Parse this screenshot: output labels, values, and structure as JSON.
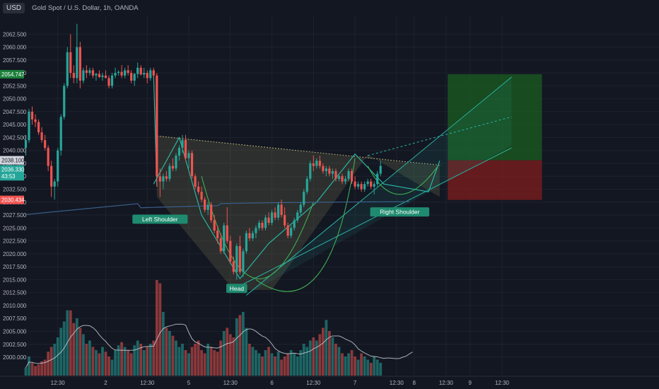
{
  "header": {
    "symbol_badge": "USD",
    "title": "Gold Spot / U.S. Dollar, 1h, OANDA"
  },
  "colors": {
    "background": "#131722",
    "grid": "#1e222d",
    "up": "#26a69a",
    "down": "#ef5350",
    "ma": "#3a5f8a",
    "pattern_fill": "#8a8a55",
    "channel": "#2bb3a3",
    "target": "#1b5e20",
    "stop": "#7f1d1d",
    "volume_ma": "#d1d4dc"
  },
  "chart_data": {
    "type": "candlestick",
    "instrument": "Gold Spot / U.S. Dollar",
    "timeframe": "1h",
    "source": "OANDA",
    "ylim": [
      1998.5,
      2065
    ],
    "y_ticks": [
      "2062.500",
      "2060.000",
      "2057.500",
      "2055.000",
      "2052.500",
      "2050.000",
      "2047.500",
      "2045.000",
      "2042.500",
      "2040.000",
      "2037.500",
      "2035.000",
      "2032.500",
      "2030.000",
      "2027.500",
      "2025.000",
      "2022.500",
      "2020.000",
      "2017.500",
      "2015.000",
      "2012.500",
      "2010.000",
      "2007.500",
      "2005.000",
      "2002.500",
      "2000.000"
    ],
    "x_ticks": [
      {
        "label": "12:30",
        "bar": 10
      },
      {
        "label": "2",
        "bar": 25
      },
      {
        "label": "12:30",
        "bar": 38
      },
      {
        "label": "5",
        "bar": 51
      },
      {
        "label": "12:30",
        "bar": 64
      },
      {
        "label": "6",
        "bar": 77
      },
      {
        "label": "12:30",
        "bar": 90
      },
      {
        "label": "7",
        "bar": 103
      },
      {
        "label": "12:30",
        "bar": 116
      },
      {
        "label": "8",
        "bar": 121.5
      },
      {
        "label": "12:30",
        "bar": 131.5
      },
      {
        "label": "9",
        "bar": 139
      },
      {
        "label": "12:30",
        "bar": 149
      }
    ],
    "price_labels": [
      {
        "text": "2054.747",
        "value": 2054.747,
        "color": "#1b7f3a"
      },
      {
        "text": "2038.100",
        "value": 2038.1,
        "color": "#d1d4dc"
      },
      {
        "text": "2036.330",
        "value": 2036.33,
        "color": "#26a69a"
      },
      {
        "text": "43:53",
        "value": 2035.0,
        "color": "#26a69a"
      },
      {
        "text": "2030.434",
        "value": 2030.434,
        "color": "#ef5350"
      }
    ],
    "candles": [
      [
        2040.5,
        2043.0,
        2039.0,
        2042.0
      ],
      [
        2042.0,
        2048.0,
        2041.5,
        2047.5
      ],
      [
        2047.5,
        2048.5,
        2045.0,
        2046.0
      ],
      [
        2046.0,
        2047.0,
        2044.5,
        2045.5
      ],
      [
        2045.5,
        2046.0,
        2043.0,
        2043.5
      ],
      [
        2043.5,
        2044.5,
        2041.5,
        2042.0
      ],
      [
        2042.0,
        2043.0,
        2040.0,
        2040.5
      ],
      [
        2040.5,
        2041.0,
        2036.0,
        2037.0
      ],
      [
        2037.0,
        2038.0,
        2031.0,
        2033.0
      ],
      [
        2033.0,
        2034.5,
        2030.5,
        2034.0
      ],
      [
        2034.0,
        2040.5,
        2033.0,
        2040.0
      ],
      [
        2040.0,
        2047.0,
        2039.0,
        2046.5
      ],
      [
        2046.5,
        2053.0,
        2046.0,
        2052.5
      ],
      [
        2052.5,
        2060.0,
        2052.0,
        2059.0
      ],
      [
        2059.0,
        2062.5,
        2054.0,
        2055.0
      ],
      [
        2055.0,
        2056.5,
        2053.0,
        2054.0
      ],
      [
        2054.0,
        2064.5,
        2053.0,
        2060.0
      ],
      [
        2060.0,
        2061.0,
        2052.0,
        2053.5
      ],
      [
        2053.5,
        2056.0,
        2053.0,
        2055.5
      ],
      [
        2055.5,
        2056.5,
        2054.0,
        2055.0
      ],
      [
        2055.0,
        2056.0,
        2054.5,
        2055.5
      ],
      [
        2055.5,
        2056.0,
        2054.0,
        2054.5
      ],
      [
        2054.5,
        2055.0,
        2053.5,
        2054.8
      ],
      [
        2054.8,
        2055.5,
        2054.0,
        2054.2
      ],
      [
        2054.2,
        2055.0,
        2053.5,
        2054.5
      ],
      [
        2054.5,
        2055.5,
        2054.0,
        2054.0
      ],
      [
        2054.0,
        2054.5,
        2052.0,
        2052.5
      ],
      [
        2052.5,
        2055.0,
        2052.0,
        2054.5
      ],
      [
        2054.5,
        2056.0,
        2054.0,
        2055.0
      ],
      [
        2055.0,
        2055.5,
        2054.5,
        2055.2
      ],
      [
        2055.2,
        2056.5,
        2054.0,
        2054.5
      ],
      [
        2054.5,
        2056.0,
        2054.0,
        2055.5
      ],
      [
        2055.5,
        2056.5,
        2054.5,
        2055.0
      ],
      [
        2055.0,
        2055.5,
        2053.0,
        2053.5
      ],
      [
        2053.5,
        2055.0,
        2052.5,
        2054.8
      ],
      [
        2054.8,
        2057.0,
        2054.0,
        2056.0
      ],
      [
        2056.0,
        2056.5,
        2054.5,
        2054.7
      ],
      [
        2054.7,
        2056.0,
        2054.0,
        2055.0
      ],
      [
        2055.0,
        2055.5,
        2053.0,
        2054.0
      ],
      [
        2054.0,
        2056.0,
        2053.5,
        2055.5
      ],
      [
        2055.5,
        2056.0,
        2054.0,
        2054.5
      ],
      [
        2054.5,
        2055.0,
        2033.0,
        2035.0
      ],
      [
        2035.0,
        2036.5,
        2031.0,
        2034.0
      ],
      [
        2034.0,
        2035.5,
        2032.5,
        2035.0
      ],
      [
        2035.0,
        2036.0,
        2034.0,
        2034.5
      ],
      [
        2034.5,
        2037.5,
        2034.0,
        2037.0
      ],
      [
        2037.0,
        2038.5,
        2036.0,
        2036.5
      ],
      [
        2036.5,
        2039.5,
        2036.0,
        2039.0
      ],
      [
        2039.0,
        2041.0,
        2038.0,
        2040.5
      ],
      [
        2040.5,
        2043.0,
        2039.5,
        2042.0
      ],
      [
        2042.0,
        2043.0,
        2038.0,
        2038.5
      ],
      [
        2038.5,
        2040.0,
        2036.5,
        2039.5
      ],
      [
        2039.5,
        2040.0,
        2034.5,
        2035.0
      ],
      [
        2035.0,
        2035.5,
        2032.5,
        2033.0
      ],
      [
        2033.0,
        2034.0,
        2031.5,
        2032.0
      ],
      [
        2032.0,
        2033.0,
        2030.0,
        2030.5
      ],
      [
        2030.5,
        2031.0,
        2028.0,
        2028.5
      ],
      [
        2028.5,
        2030.0,
        2027.5,
        2029.5
      ],
      [
        2029.5,
        2030.0,
        2026.0,
        2026.5
      ],
      [
        2026.5,
        2027.5,
        2024.0,
        2024.5
      ],
      [
        2024.5,
        2025.5,
        2022.0,
        2023.0
      ],
      [
        2023.0,
        2024.0,
        2020.0,
        2020.5
      ],
      [
        2020.5,
        2026.0,
        2020.0,
        2025.5
      ],
      [
        2025.5,
        2029.0,
        2022.0,
        2022.5
      ],
      [
        2022.5,
        2023.5,
        2018.0,
        2018.5
      ],
      [
        2018.5,
        2019.5,
        2016.0,
        2016.5
      ],
      [
        2016.5,
        2022.0,
        2015.0,
        2021.5
      ],
      [
        2021.5,
        2023.5,
        2016.0,
        2016.5
      ],
      [
        2016.5,
        2021.0,
        2015.5,
        2020.5
      ],
      [
        2020.5,
        2024.5,
        2020.0,
        2024.0
      ],
      [
        2024.0,
        2025.0,
        2022.5,
        2023.0
      ],
      [
        2023.0,
        2024.5,
        2022.5,
        2024.0
      ],
      [
        2024.0,
        2025.5,
        2023.0,
        2025.0
      ],
      [
        2025.0,
        2026.5,
        2024.5,
        2026.0
      ],
      [
        2026.0,
        2026.5,
        2024.5,
        2025.0
      ],
      [
        2025.0,
        2027.5,
        2024.5,
        2027.0
      ],
      [
        2027.0,
        2028.0,
        2025.5,
        2026.0
      ],
      [
        2026.0,
        2028.5,
        2025.5,
        2028.0
      ],
      [
        2028.0,
        2029.0,
        2026.5,
        2027.0
      ],
      [
        2027.0,
        2030.0,
        2026.5,
        2029.5
      ],
      [
        2029.5,
        2030.5,
        2027.0,
        2027.5
      ],
      [
        2027.5,
        2029.0,
        2025.0,
        2025.5
      ],
      [
        2025.5,
        2026.0,
        2023.0,
        2023.5
      ],
      [
        2023.5,
        2025.5,
        2023.0,
        2025.0
      ],
      [
        2025.0,
        2027.0,
        2024.5,
        2026.5
      ],
      [
        2026.5,
        2028.5,
        2026.0,
        2028.0
      ],
      [
        2028.0,
        2030.0,
        2027.5,
        2029.5
      ],
      [
        2029.5,
        2032.5,
        2029.0,
        2032.0
      ],
      [
        2032.0,
        2035.0,
        2031.5,
        2034.5
      ],
      [
        2034.5,
        2038.0,
        2034.0,
        2037.5
      ],
      [
        2037.5,
        2039.0,
        2036.0,
        2037.0
      ],
      [
        2037.0,
        2038.5,
        2036.5,
        2038.0
      ],
      [
        2038.0,
        2039.0,
        2036.5,
        2037.0
      ],
      [
        2037.0,
        2037.5,
        2035.5,
        2036.0
      ],
      [
        2036.0,
        2037.0,
        2035.0,
        2036.5
      ],
      [
        2036.5,
        2037.0,
        2035.0,
        2035.5
      ],
      [
        2035.5,
        2036.5,
        2034.5,
        2036.0
      ],
      [
        2036.0,
        2036.5,
        2034.0,
        2034.5
      ],
      [
        2034.5,
        2035.5,
        2034.0,
        2035.0
      ],
      [
        2035.0,
        2035.5,
        2033.5,
        2034.0
      ],
      [
        2034.0,
        2035.0,
        2033.5,
        2034.5
      ],
      [
        2034.5,
        2036.5,
        2034.0,
        2036.0
      ],
      [
        2036.0,
        2036.5,
        2033.5,
        2034.0
      ],
      [
        2034.0,
        2035.0,
        2032.5,
        2033.0
      ],
      [
        2033.0,
        2034.0,
        2032.5,
        2033.5
      ],
      [
        2033.5,
        2034.0,
        2032.0,
        2032.5
      ],
      [
        2032.5,
        2034.0,
        2032.0,
        2033.5
      ],
      [
        2033.5,
        2034.5,
        2033.0,
        2034.0
      ],
      [
        2034.0,
        2034.5,
        2032.5,
        2033.0
      ],
      [
        2033.0,
        2034.0,
        2031.5,
        2033.5
      ],
      [
        2033.5,
        2036.0,
        2033.0,
        2035.5
      ],
      [
        2035.5,
        2038.0,
        2035.0,
        2037.0
      ]
    ],
    "volume": [
      5,
      12,
      8,
      6,
      7,
      9,
      10,
      15,
      18,
      20,
      24,
      30,
      34,
      41,
      41,
      33,
      36,
      30,
      26,
      20,
      22,
      18,
      16,
      14,
      18,
      15,
      12,
      10,
      16,
      19,
      21,
      18,
      16,
      14,
      19,
      22,
      20,
      16,
      18,
      20,
      22,
      60,
      58,
      40,
      30,
      28,
      25,
      22,
      18,
      20,
      16,
      14,
      18,
      20,
      22,
      16,
      14,
      20,
      18,
      16,
      15,
      22,
      28,
      30,
      26,
      24,
      36,
      38,
      40,
      30,
      20,
      18,
      16,
      14,
      12,
      16,
      18,
      14,
      12,
      15,
      10,
      12,
      14,
      16,
      14,
      12,
      16,
      20,
      18,
      22,
      24,
      22,
      26,
      30,
      35,
      28,
      24,
      20,
      18,
      14,
      12,
      14,
      16,
      12,
      10,
      14,
      12,
      10,
      8,
      12,
      10,
      8,
      12,
      14,
      10,
      12,
      10,
      12,
      16,
      18,
      24,
      20
    ],
    "volume_ylim": [
      0,
      60
    ],
    "annotations": [
      {
        "text": "Left Shoulder",
        "bar": 42,
        "value": 2027.6
      },
      {
        "text": "Head",
        "bar": 66,
        "value": 2014.2
      },
      {
        "text": "Right Shoulder",
        "bar": 117,
        "value": 2029.0
      }
    ]
  }
}
